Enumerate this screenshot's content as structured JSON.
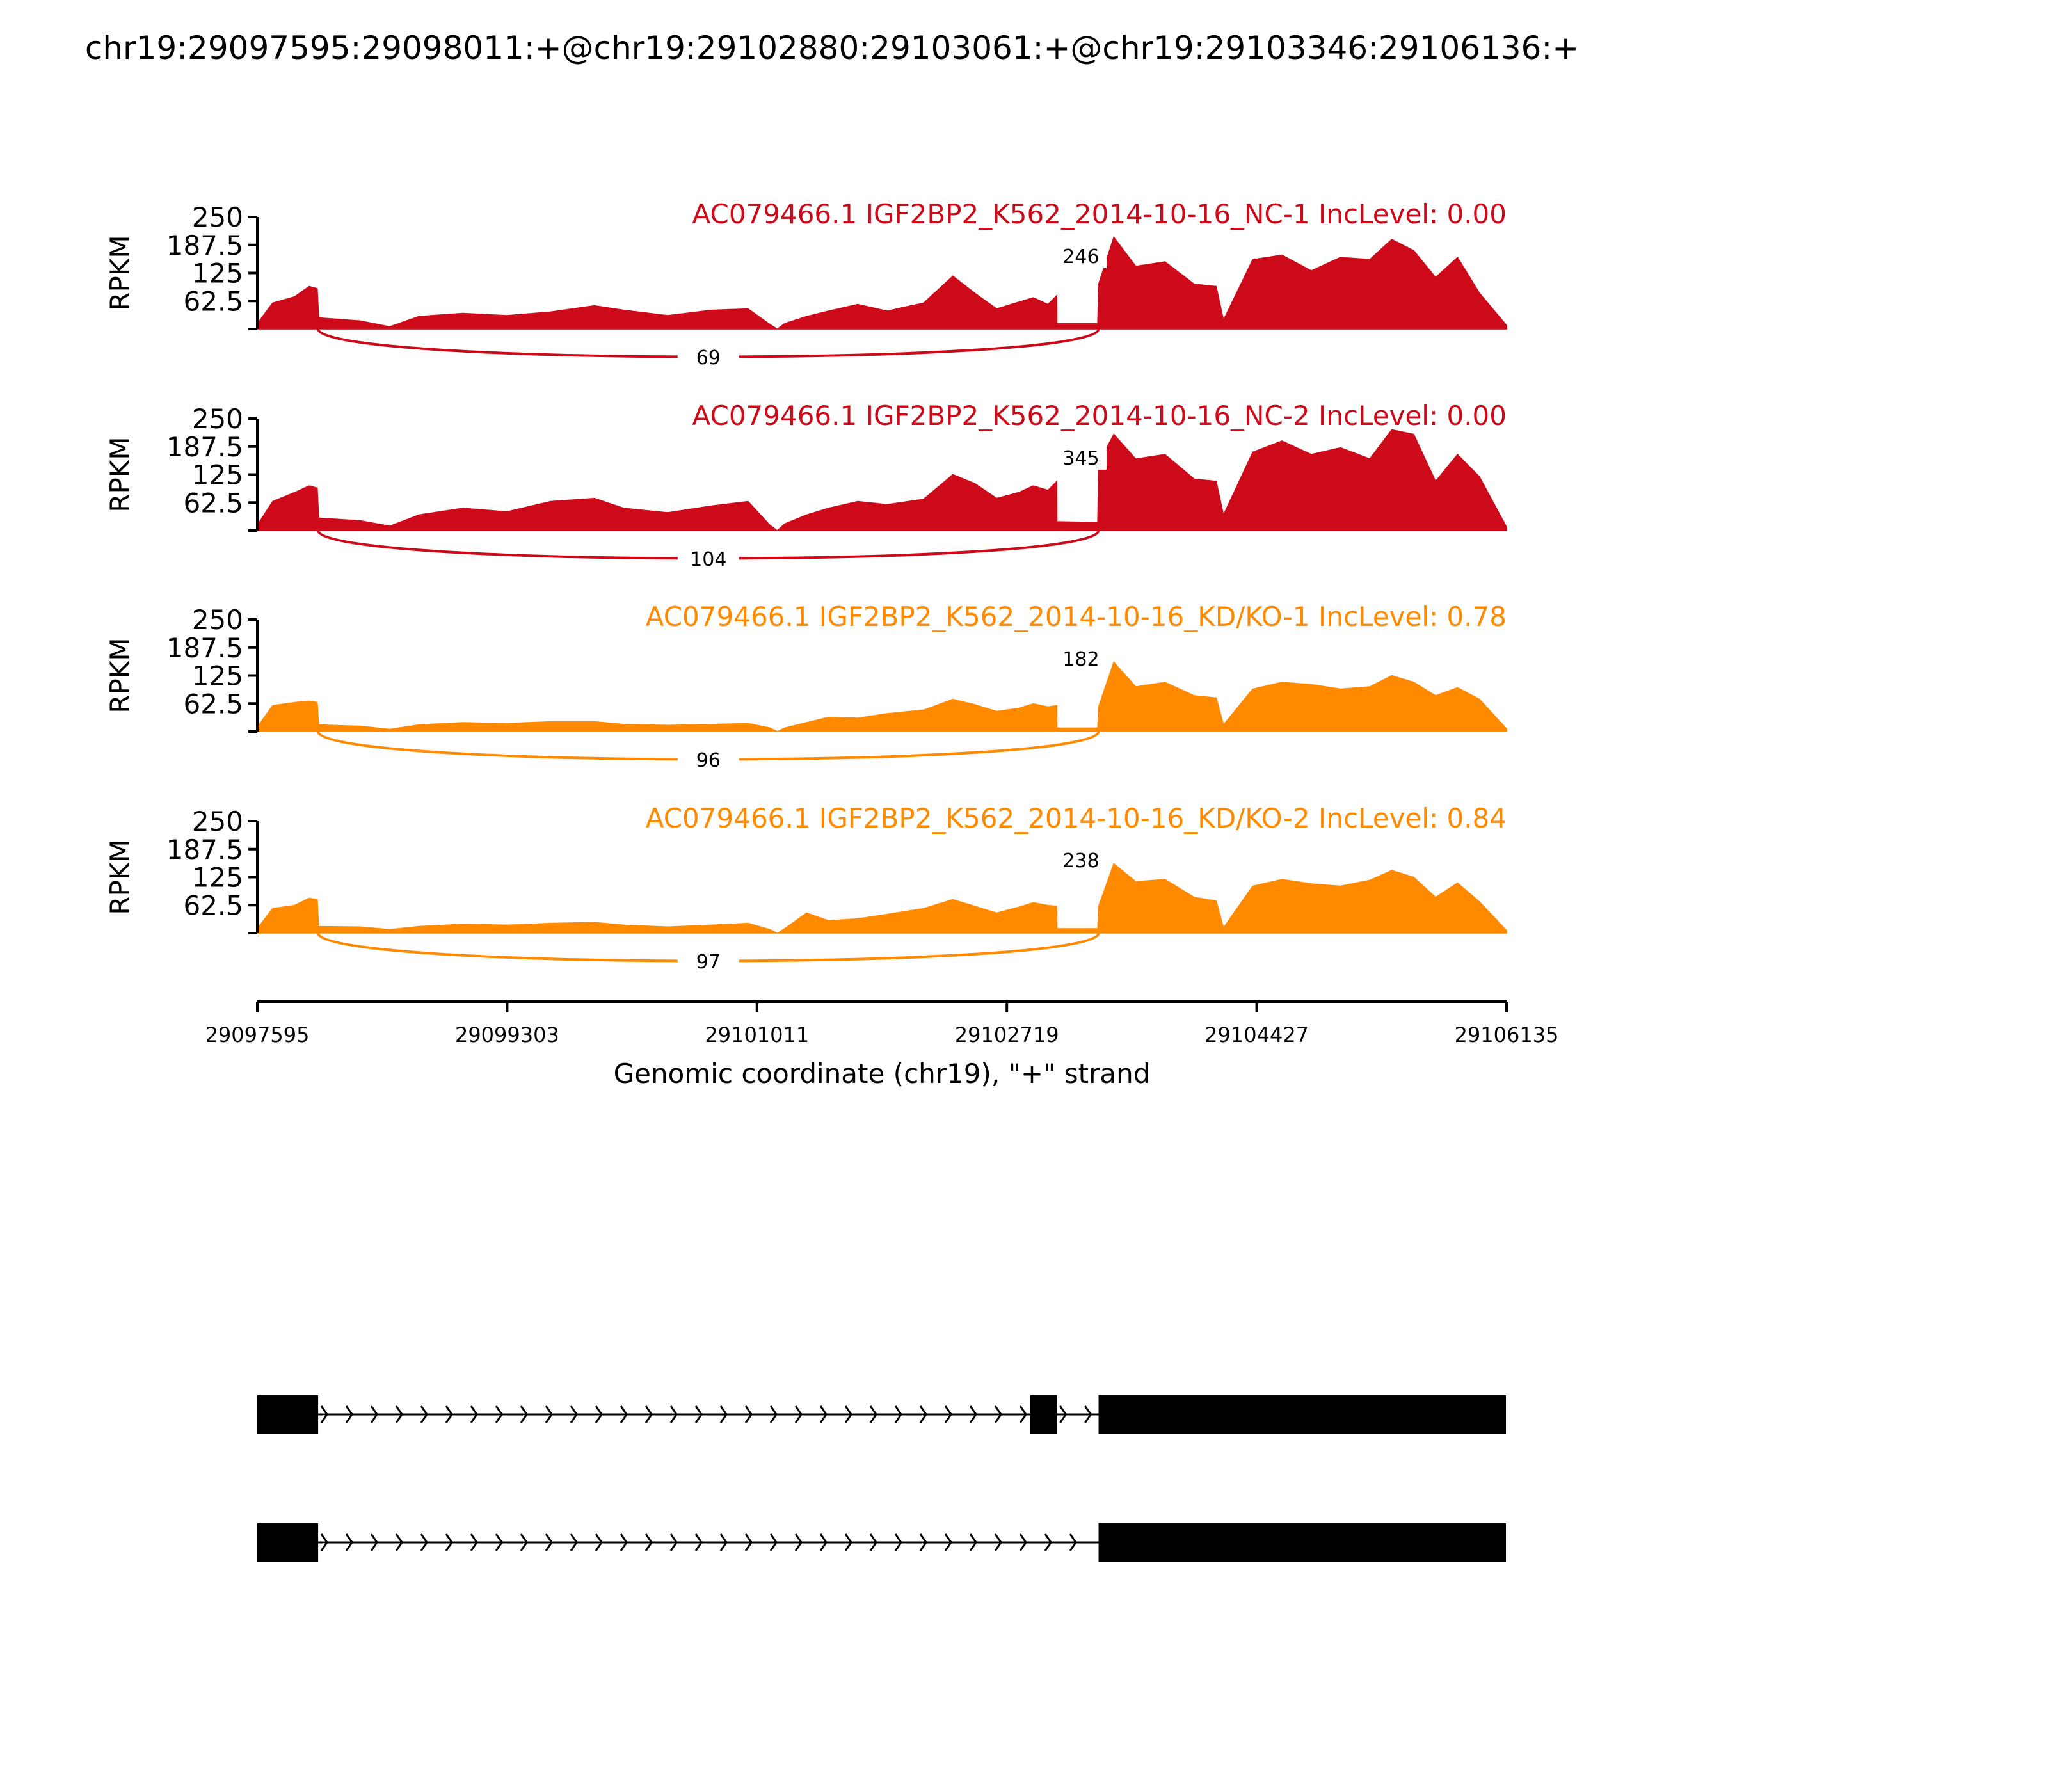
{
  "title": "chr19:29097595:29098011:+@chr19:29102880:29103061:+@chr19:29103346:29106136:+",
  "colors": {
    "nc": "#cc0a1a",
    "kd": "#ff8a00",
    "axis": "#000000",
    "gene": "#000000"
  },
  "chart_data": {
    "type": "area",
    "title": "chr19:29097595:29098011:+@chr19:29102880:29103061:+@chr19:29103346:29106136:+",
    "ylabel": "RPKM",
    "xlabel": "Genomic coordinate (chr19), \"+\" strand",
    "xlim": [
      29097595,
      29106135
    ],
    "ylim": [
      0,
      250
    ],
    "xticks": [
      29097595,
      29099303,
      29101011,
      29102719,
      29104427,
      29106135
    ],
    "xtick_labels": [
      "29097595",
      "29099303",
      "29101011",
      "29102719",
      "29104427",
      "29106135"
    ],
    "yticks": [
      62.5,
      125,
      187.5,
      250
    ],
    "ytick_labels": [
      "62.5",
      "125",
      "187.5",
      "250"
    ],
    "exons": [
      [
        29097595,
        29098011
      ],
      [
        29102880,
        29103061
      ],
      [
        29103346,
        29106136
      ]
    ],
    "tracks": [
      {
        "label": "AC079466.1 IGF2BP2_K562_2014-10-16_NC-1 IncLevel: 0.00",
        "group": "nc",
        "inc_junction_count": "246",
        "skip_junction_count": "69",
        "coverage": [
          [
            29097595,
            12
          ],
          [
            29097700,
            58
          ],
          [
            29097850,
            72
          ],
          [
            29097950,
            95
          ],
          [
            29098005,
            90
          ],
          [
            29098015,
            25
          ],
          [
            29098300,
            18
          ],
          [
            29098500,
            5
          ],
          [
            29098700,
            28
          ],
          [
            29099000,
            35
          ],
          [
            29099300,
            30
          ],
          [
            29099600,
            38
          ],
          [
            29099900,
            52
          ],
          [
            29100100,
            42
          ],
          [
            29100400,
            30
          ],
          [
            29100700,
            42
          ],
          [
            29100950,
            45
          ],
          [
            29101100,
            10
          ],
          [
            29101150,
            0
          ],
          [
            29101200,
            12
          ],
          [
            29101350,
            28
          ],
          [
            29101500,
            40
          ],
          [
            29101700,
            55
          ],
          [
            29101900,
            40
          ],
          [
            29102150,
            58
          ],
          [
            29102350,
            118
          ],
          [
            29102500,
            80
          ],
          [
            29102650,
            45
          ],
          [
            29102800,
            60
          ],
          [
            29102900,
            70
          ],
          [
            29103000,
            55
          ],
          [
            29103061,
            75
          ],
          [
            29103062,
            12
          ],
          [
            29103340,
            12
          ],
          [
            29103346,
            100
          ],
          [
            29103450,
            205
          ],
          [
            29103600,
            140
          ],
          [
            29103800,
            150
          ],
          [
            29104000,
            100
          ],
          [
            29104150,
            95
          ],
          [
            29104200,
            20
          ],
          [
            29104400,
            155
          ],
          [
            29104600,
            165
          ],
          [
            29104800,
            130
          ],
          [
            29105000,
            160
          ],
          [
            29105200,
            155
          ],
          [
            29105350,
            200
          ],
          [
            29105500,
            175
          ],
          [
            29105650,
            115
          ],
          [
            29105800,
            160
          ],
          [
            29105950,
            80
          ],
          [
            29106135,
            8
          ]
        ]
      },
      {
        "label": "AC079466.1 IGF2BP2_K562_2014-10-16_NC-2 IncLevel: 0.00",
        "group": "nc",
        "inc_junction_count": "345",
        "skip_junction_count": "104",
        "coverage": [
          [
            29097595,
            12
          ],
          [
            29097700,
            65
          ],
          [
            29097850,
            85
          ],
          [
            29097950,
            100
          ],
          [
            29098005,
            95
          ],
          [
            29098015,
            28
          ],
          [
            29098300,
            22
          ],
          [
            29098500,
            10
          ],
          [
            29098700,
            35
          ],
          [
            29099000,
            50
          ],
          [
            29099300,
            42
          ],
          [
            29099600,
            65
          ],
          [
            29099900,
            72
          ],
          [
            29100100,
            50
          ],
          [
            29100400,
            40
          ],
          [
            29100700,
            55
          ],
          [
            29100950,
            65
          ],
          [
            29101100,
            12
          ],
          [
            29101150,
            0
          ],
          [
            29101200,
            15
          ],
          [
            29101350,
            35
          ],
          [
            29101500,
            50
          ],
          [
            29101700,
            65
          ],
          [
            29101900,
            58
          ],
          [
            29102150,
            70
          ],
          [
            29102350,
            125
          ],
          [
            29102500,
            105
          ],
          [
            29102650,
            72
          ],
          [
            29102800,
            85
          ],
          [
            29102900,
            100
          ],
          [
            29103000,
            90
          ],
          [
            29103061,
            110
          ],
          [
            29103062,
            20
          ],
          [
            29103340,
            18
          ],
          [
            29103346,
            150
          ],
          [
            29103450,
            215
          ],
          [
            29103600,
            160
          ],
          [
            29103800,
            170
          ],
          [
            29104000,
            115
          ],
          [
            29104150,
            110
          ],
          [
            29104200,
            35
          ],
          [
            29104400,
            175
          ],
          [
            29104600,
            200
          ],
          [
            29104800,
            170
          ],
          [
            29105000,
            185
          ],
          [
            29105200,
            160
          ],
          [
            29105350,
            225
          ],
          [
            29105500,
            215
          ],
          [
            29105650,
            110
          ],
          [
            29105800,
            170
          ],
          [
            29105950,
            120
          ],
          [
            29106135,
            8
          ]
        ]
      },
      {
        "label": "AC079466.1 IGF2BP2_K562_2014-10-16_KD/KO-1 IncLevel: 0.78",
        "group": "kd",
        "inc_junction_count": "182",
        "skip_junction_count": "96",
        "coverage": [
          [
            29097595,
            10
          ],
          [
            29097700,
            58
          ],
          [
            29097850,
            65
          ],
          [
            29097950,
            68
          ],
          [
            29098005,
            65
          ],
          [
            29098015,
            15
          ],
          [
            29098300,
            12
          ],
          [
            29098500,
            5
          ],
          [
            29098700,
            15
          ],
          [
            29099000,
            20
          ],
          [
            29099300,
            18
          ],
          [
            29099600,
            22
          ],
          [
            29099900,
            22
          ],
          [
            29100100,
            16
          ],
          [
            29100400,
            14
          ],
          [
            29100700,
            16
          ],
          [
            29100950,
            18
          ],
          [
            29101100,
            8
          ],
          [
            29101150,
            0
          ],
          [
            29101200,
            8
          ],
          [
            29101350,
            20
          ],
          [
            29101500,
            32
          ],
          [
            29101700,
            30
          ],
          [
            29101900,
            40
          ],
          [
            29102150,
            48
          ],
          [
            29102350,
            72
          ],
          [
            29102500,
            60
          ],
          [
            29102650,
            45
          ],
          [
            29102800,
            52
          ],
          [
            29102900,
            62
          ],
          [
            29103000,
            55
          ],
          [
            29103061,
            58
          ],
          [
            29103062,
            8
          ],
          [
            29103340,
            8
          ],
          [
            29103346,
            55
          ],
          [
            29103450,
            155
          ],
          [
            29103600,
            100
          ],
          [
            29103800,
            110
          ],
          [
            29104000,
            80
          ],
          [
            29104150,
            75
          ],
          [
            29104200,
            15
          ],
          [
            29104400,
            95
          ],
          [
            29104600,
            110
          ],
          [
            29104800,
            105
          ],
          [
            29105000,
            95
          ],
          [
            29105200,
            100
          ],
          [
            29105350,
            125
          ],
          [
            29105500,
            110
          ],
          [
            29105650,
            80
          ],
          [
            29105800,
            98
          ],
          [
            29105950,
            72
          ],
          [
            29106135,
            6
          ]
        ]
      },
      {
        "label": "AC079466.1 IGF2BP2_K562_2014-10-16_KD/KO-2 IncLevel: 0.84",
        "group": "kd",
        "inc_junction_count": "238",
        "skip_junction_count": "97",
        "coverage": [
          [
            29097595,
            10
          ],
          [
            29097700,
            55
          ],
          [
            29097850,
            62
          ],
          [
            29097950,
            78
          ],
          [
            29098005,
            75
          ],
          [
            29098015,
            15
          ],
          [
            29098300,
            14
          ],
          [
            29098500,
            8
          ],
          [
            29098700,
            15
          ],
          [
            29099000,
            20
          ],
          [
            29099300,
            18
          ],
          [
            29099600,
            22
          ],
          [
            29099900,
            24
          ],
          [
            29100100,
            18
          ],
          [
            29100400,
            14
          ],
          [
            29100700,
            18
          ],
          [
            29100950,
            22
          ],
          [
            29101100,
            8
          ],
          [
            29101150,
            0
          ],
          [
            29101200,
            10
          ],
          [
            29101350,
            45
          ],
          [
            29101500,
            28
          ],
          [
            29101700,
            32
          ],
          [
            29101900,
            42
          ],
          [
            29102150,
            55
          ],
          [
            29102350,
            75
          ],
          [
            29102500,
            60
          ],
          [
            29102650,
            45
          ],
          [
            29102800,
            58
          ],
          [
            29102900,
            68
          ],
          [
            29103000,
            62
          ],
          [
            29103061,
            60
          ],
          [
            29103062,
            10
          ],
          [
            29103340,
            10
          ],
          [
            29103346,
            60
          ],
          [
            29103450,
            155
          ],
          [
            29103600,
            115
          ],
          [
            29103800,
            120
          ],
          [
            29104000,
            80
          ],
          [
            29104150,
            72
          ],
          [
            29104200,
            12
          ],
          [
            29104400,
            105
          ],
          [
            29104600,
            120
          ],
          [
            29104800,
            110
          ],
          [
            29105000,
            105
          ],
          [
            29105200,
            118
          ],
          [
            29105350,
            140
          ],
          [
            29105500,
            125
          ],
          [
            29105650,
            80
          ],
          [
            29105800,
            112
          ],
          [
            29105950,
            70
          ],
          [
            29106135,
            6
          ]
        ]
      }
    ],
    "isoforms": [
      {
        "exons": [
          [
            29097595,
            29098011
          ],
          [
            29102880,
            29103061
          ],
          [
            29103346,
            29106136
          ]
        ]
      },
      {
        "exons": [
          [
            29097595,
            29098011
          ],
          [
            29103346,
            29106136
          ]
        ]
      }
    ]
  }
}
